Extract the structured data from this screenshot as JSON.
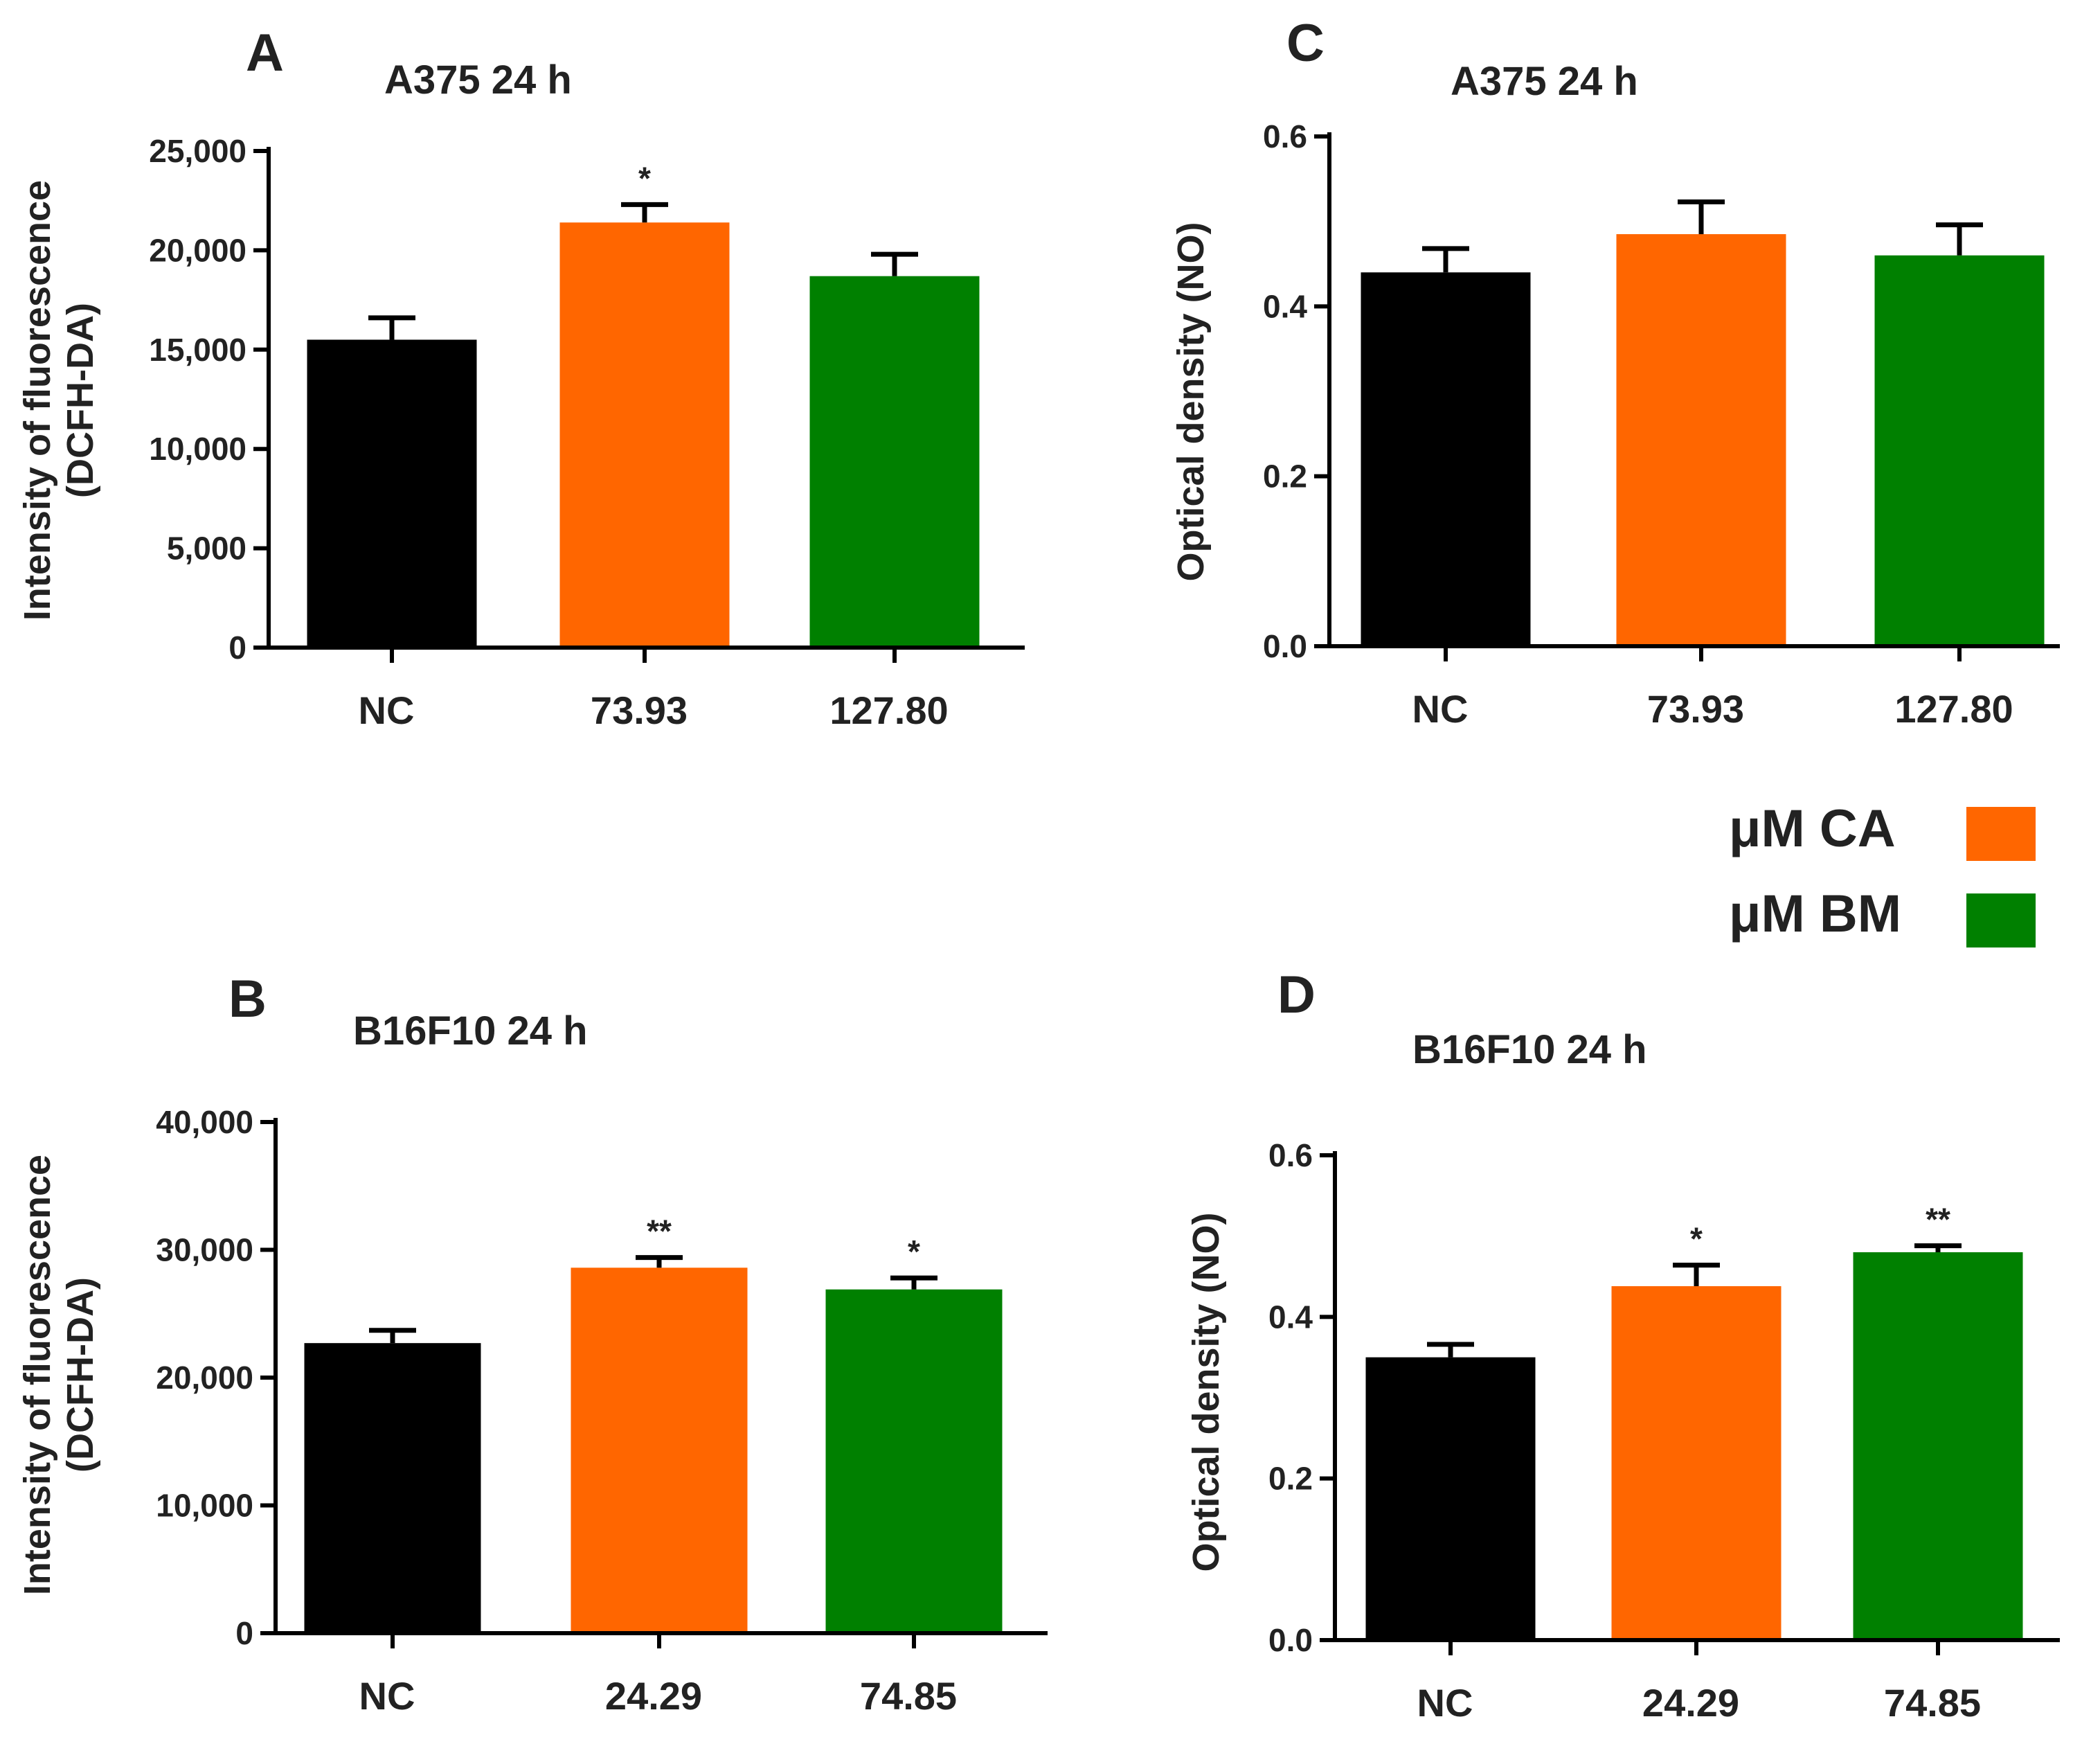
{
  "figure": {
    "legend": [
      {
        "label": "μM CA",
        "color": "#ff6600"
      },
      {
        "label": "μM BM",
        "color": "#008000"
      }
    ]
  },
  "colors": {
    "NC": "#000000",
    "CA": "#ff6600",
    "BM": "#008000"
  },
  "chart_data": [
    {
      "panel": "A",
      "type": "bar",
      "title": "A375 24 h",
      "ylabel": "Intensity of fluorescence\n(DCFH-DA)",
      "xlabel": "",
      "categories": [
        "NC",
        "73.93",
        "127.80"
      ],
      "values": [
        15500,
        21400,
        18700
      ],
      "errors": [
        1100,
        900,
        1100
      ],
      "significance": [
        "",
        "*",
        ""
      ],
      "bar_colors": [
        "#000000",
        "#ff6600",
        "#008000"
      ],
      "ylim": [
        0,
        25000
      ],
      "yticks": [
        0,
        5000,
        10000,
        15000,
        20000,
        25000
      ],
      "ytick_labels": [
        "0",
        "5,000",
        "10,000",
        "15,000",
        "20,000",
        "25,000"
      ]
    },
    {
      "panel": "B",
      "type": "bar",
      "title": "B16F10 24 h",
      "ylabel": "Intensity of fluorescence\n(DCFH-DA)",
      "xlabel": "",
      "categories": [
        "NC",
        "24.29",
        "74.85"
      ],
      "values": [
        22700,
        28600,
        26900
      ],
      "errors": [
        1000,
        800,
        900
      ],
      "significance": [
        "",
        "**",
        "*"
      ],
      "bar_colors": [
        "#000000",
        "#ff6600",
        "#008000"
      ],
      "ylim": [
        0,
        40000
      ],
      "yticks": [
        0,
        10000,
        20000,
        30000,
        40000
      ],
      "ytick_labels": [
        "0",
        "10,000",
        "20,000",
        "30,000",
        "40,000"
      ]
    },
    {
      "panel": "C",
      "type": "bar",
      "title": "A375 24 h",
      "ylabel": "Optical density (NO)",
      "xlabel": "",
      "categories": [
        "NC",
        "73.93",
        "127.80"
      ],
      "values": [
        0.44,
        0.485,
        0.46
      ],
      "errors": [
        0.028,
        0.038,
        0.036
      ],
      "significance": [
        "",
        "",
        ""
      ],
      "bar_colors": [
        "#000000",
        "#ff6600",
        "#008000"
      ],
      "ylim": [
        0,
        0.6
      ],
      "yticks": [
        0.0,
        0.2,
        0.4,
        0.6
      ],
      "ytick_labels": [
        "0.0",
        "0.2",
        "0.4",
        "0.6"
      ]
    },
    {
      "panel": "D",
      "type": "bar",
      "title": "B16F10 24 h",
      "ylabel": "Optical density (NO)",
      "xlabel": "",
      "categories": [
        "NC",
        "24.29",
        "74.85"
      ],
      "values": [
        0.35,
        0.438,
        0.48
      ],
      "errors": [
        0.016,
        0.026,
        0.008
      ],
      "significance": [
        "",
        "*",
        "**"
      ],
      "bar_colors": [
        "#000000",
        "#ff6600",
        "#008000"
      ],
      "ylim": [
        0,
        0.6
      ],
      "yticks": [
        0.0,
        0.2,
        0.4,
        0.6
      ],
      "ytick_labels": [
        "0.0",
        "0.2",
        "0.4",
        "0.6"
      ]
    }
  ]
}
